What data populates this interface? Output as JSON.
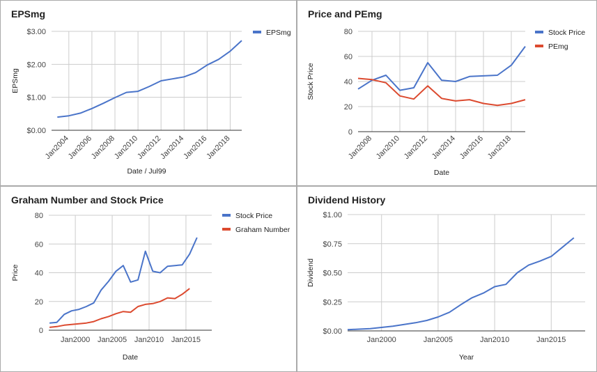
{
  "chart_data": [
    {
      "type": "line",
      "title": "EPSmg",
      "xlabel": "Date / Jul99",
      "ylabel": "EPSmg",
      "x": [
        2003,
        2004,
        2005,
        2006,
        2007,
        2008,
        2009,
        2010,
        2011,
        2012,
        2013,
        2014,
        2015,
        2016,
        2017,
        2018,
        2019
      ],
      "xlim": [
        2002.5,
        2019
      ],
      "xticks": [
        2004,
        2006,
        2008,
        2010,
        2012,
        2014,
        2016,
        2018
      ],
      "xtick_labels": [
        "Jan2004",
        "Jan2006",
        "Jan2008",
        "Jan2010",
        "Jan2012",
        "Jan2014",
        "Jan2016",
        "Jan2018"
      ],
      "ylim": [
        0,
        3
      ],
      "yticks": [
        0,
        1,
        2,
        3
      ],
      "ytick_labels": [
        "$0.00",
        "$1.00",
        "$2.00",
        "$3.00"
      ],
      "legend": "right",
      "series": [
        {
          "name": "EPSmg",
          "color": "#4a74c9",
          "values": [
            0.4,
            0.44,
            0.52,
            0.66,
            0.82,
            0.99,
            1.15,
            1.18,
            1.33,
            1.5,
            1.56,
            1.62,
            1.75,
            1.98,
            2.15,
            2.4,
            2.72
          ]
        }
      ]
    },
    {
      "type": "line",
      "title": "Price and PEmg",
      "xlabel": "Date",
      "ylabel": "Stock Price",
      "x": [
        2007,
        2008,
        2009,
        2010,
        2011,
        2012,
        2013,
        2014,
        2015,
        2016,
        2017,
        2018,
        2019
      ],
      "xlim": [
        2007,
        2019
      ],
      "xticks": [
        2008,
        2010,
        2012,
        2014,
        2016,
        2018
      ],
      "xtick_labels": [
        "Jan2008",
        "Jan2010",
        "Jan2012",
        "Jan2014",
        "Jan2016",
        "Jan2018"
      ],
      "ylim": [
        0,
        80
      ],
      "yticks": [
        0,
        20,
        40,
        60,
        80
      ],
      "ytick_labels": [
        "0",
        "20",
        "40",
        "60",
        "80"
      ],
      "legend": "right",
      "series": [
        {
          "name": "Stock Price",
          "color": "#4a74c9",
          "values": [
            34,
            41,
            45,
            33,
            35,
            55,
            41,
            40,
            44,
            44.5,
            45,
            53,
            68
          ]
        },
        {
          "name": "PEmg",
          "color": "#dc4a2f",
          "values": [
            42.5,
            41.5,
            39,
            28.5,
            26,
            36.5,
            26.5,
            24.5,
            25.5,
            22.5,
            21,
            22.5,
            25.5
          ]
        }
      ]
    },
    {
      "type": "line",
      "title": "Graham Number and Stock Price",
      "xlabel": "Date",
      "ylabel": "Price",
      "x": [
        1996.5,
        1997.5,
        1998.5,
        1999.5,
        2000.5,
        2001.5,
        2002.5,
        2003.5,
        2004.5,
        2005.5,
        2006.5,
        2007.5,
        2008.5,
        2009.5,
        2010.5,
        2011.5,
        2012.5,
        2013.5,
        2014.5,
        2015.5,
        2016.5,
        2017.5,
        2018.5
      ],
      "xlim": [
        1996.4,
        2018.5
      ],
      "xticks": [
        2000,
        2005,
        2010,
        2015
      ],
      "xtick_labels": [
        "Jan2000",
        "Jan2005",
        "Jan2010",
        "Jan2015"
      ],
      "ylim": [
        0,
        80
      ],
      "yticks": [
        0,
        20,
        40,
        60,
        80
      ],
      "ytick_labels": [
        "0",
        "20",
        "40",
        "60",
        "80"
      ],
      "legend": "right",
      "series": [
        {
          "name": "Stock Price",
          "color": "#4a74c9",
          "values": [
            5,
            5.5,
            11,
            13.5,
            14.5,
            16.5,
            19,
            28,
            34,
            41,
            45,
            33.5,
            35,
            55,
            41,
            40,
            44.5,
            45,
            45.5,
            53,
            64.5,
            null,
            null
          ]
        },
        {
          "name": "Graham Number",
          "color": "#dc4a2f",
          "values": [
            2,
            2.5,
            3.5,
            4,
            4.5,
            5,
            6,
            8,
            9.5,
            11.5,
            13,
            12.5,
            16.5,
            18,
            18.5,
            20,
            22.5,
            22,
            25,
            29,
            null,
            null,
            null
          ]
        }
      ]
    },
    {
      "type": "line",
      "title": "Dividend History",
      "xlabel": "Year",
      "ylabel": "Dividend",
      "x": [
        1997,
        1998,
        1999,
        2000,
        2001,
        2002,
        2003,
        2004,
        2005,
        2006,
        2007,
        2008,
        2009,
        2010,
        2011,
        2012,
        2013,
        2014,
        2015,
        2016,
        2017,
        2018
      ],
      "xlim": [
        1997,
        2018
      ],
      "xticks": [
        2000,
        2005,
        2010,
        2015
      ],
      "xtick_labels": [
        "Jan2000",
        "Jan2005",
        "Jan2010",
        "Jan2015"
      ],
      "ylim": [
        0,
        1
      ],
      "yticks": [
        0,
        0.25,
        0.5,
        0.75,
        1
      ],
      "ytick_labels": [
        "$0.00",
        "$0.25",
        "$0.50",
        "$0.75",
        "$1.00"
      ],
      "legend": "none",
      "series": [
        {
          "name": "",
          "color": "#4a74c9",
          "values": [
            0.01,
            0.015,
            0.02,
            0.03,
            0.04,
            0.055,
            0.07,
            0.09,
            0.12,
            0.16,
            0.225,
            0.285,
            0.325,
            0.38,
            0.4,
            0.5,
            0.565,
            0.6,
            0.64,
            0.72,
            0.8,
            null
          ]
        }
      ]
    }
  ]
}
